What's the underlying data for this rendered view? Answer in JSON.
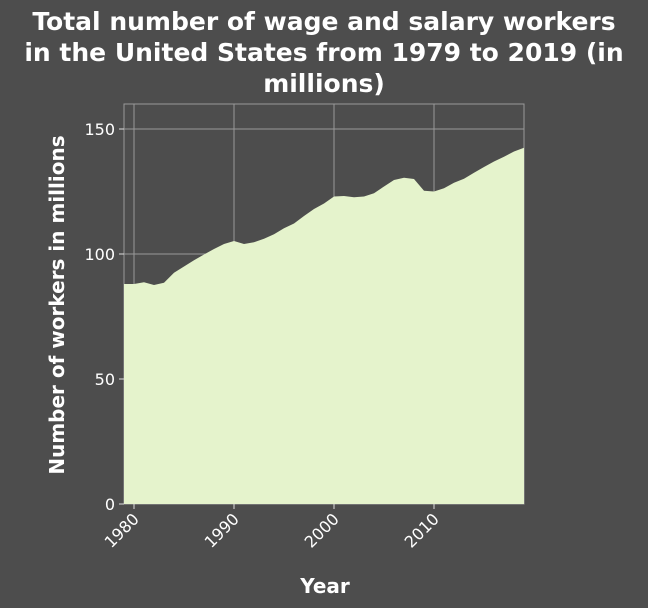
{
  "chart_data": {
    "type": "area",
    "title_lines": [
      "Total number of wage and salary workers",
      "in the United States from 1979 to 2019 (in",
      "millions)"
    ],
    "xlabel": "Year",
    "ylabel": "Number of workers in millions",
    "xlim": [
      1979,
      2019
    ],
    "ylim": [
      0,
      160
    ],
    "x_ticks": [
      1980,
      1990,
      2000,
      2010
    ],
    "y_ticks": [
      0,
      50,
      100,
      150
    ],
    "grid": true,
    "colors": {
      "background": "#4d4d4d",
      "fill": "#e5f3cc",
      "grid": "#999999",
      "text": "#ffffff"
    },
    "x": [
      1979,
      1980,
      1981,
      1982,
      1983,
      1984,
      1985,
      1986,
      1987,
      1988,
      1989,
      1990,
      1991,
      1992,
      1993,
      1994,
      1995,
      1996,
      1997,
      1998,
      1999,
      2000,
      2001,
      2002,
      2003,
      2004,
      2005,
      2006,
      2007,
      2008,
      2009,
      2010,
      2011,
      2012,
      2013,
      2014,
      2015,
      2016,
      2017,
      2018,
      2019
    ],
    "y": [
      88,
      88,
      88.7,
      87.6,
      88.5,
      92.5,
      95,
      97.5,
      99.8,
      102,
      104,
      105.2,
      104,
      104.7,
      106.1,
      107.9,
      110.3,
      112.2,
      115.2,
      118,
      120.2,
      123,
      123.2,
      122.7,
      123,
      124.3,
      127,
      129.6,
      130.5,
      130,
      125.3,
      125,
      126.3,
      128.5,
      130.1,
      132.5,
      134.8,
      137,
      138.9,
      141,
      142.5
    ]
  }
}
